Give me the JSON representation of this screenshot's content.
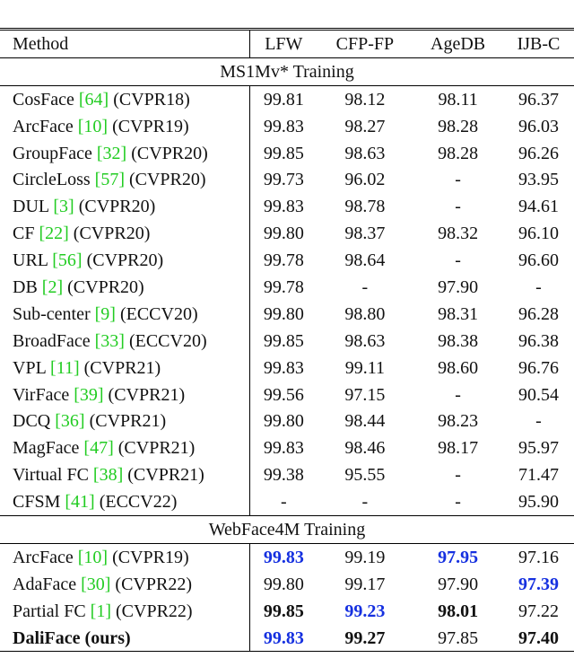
{
  "table": {
    "header": [
      "Method",
      "LFW",
      "CFP-FP",
      "AgeDB",
      "IJB-C"
    ],
    "sections": [
      {
        "title": "MS1Mv* Training",
        "rows": [
          {
            "name": "CosFace",
            "ref": "[64]",
            "venue": "(CVPR18)",
            "values": [
              "99.81",
              "98.12",
              "98.11",
              "96.37"
            ]
          },
          {
            "name": "ArcFace",
            "ref": "[10]",
            "venue": "(CVPR19)",
            "values": [
              "99.83",
              "98.27",
              "98.28",
              "96.03"
            ]
          },
          {
            "name": "GroupFace",
            "ref": "[32]",
            "venue": "(CVPR20)",
            "values": [
              "99.85",
              "98.63",
              "98.28",
              "96.26"
            ]
          },
          {
            "name": "CircleLoss",
            "ref": "[57]",
            "venue": "(CVPR20)",
            "values": [
              "99.73",
              "96.02",
              "-",
              "93.95"
            ]
          },
          {
            "name": "DUL",
            "ref": "[3]",
            "venue": "(CVPR20)",
            "values": [
              "99.83",
              "98.78",
              "-",
              "94.61"
            ]
          },
          {
            "name": "CF",
            "ref": "[22]",
            "venue": "(CVPR20)",
            "values": [
              "99.80",
              "98.37",
              "98.32",
              "96.10"
            ]
          },
          {
            "name": "URL",
            "ref": "[56]",
            "venue": "(CVPR20)",
            "values": [
              "99.78",
              "98.64",
              "-",
              "96.60"
            ]
          },
          {
            "name": "DB",
            "ref": "[2]",
            "venue": "(CVPR20)",
            "values": [
              "99.78",
              "-",
              "97.90",
              "-"
            ]
          },
          {
            "name": "Sub-center",
            "ref": "[9]",
            "venue": "(ECCV20)",
            "values": [
              "99.80",
              "98.80",
              "98.31",
              "96.28"
            ]
          },
          {
            "name": "BroadFace",
            "ref": "[33]",
            "venue": "(ECCV20)",
            "values": [
              "99.85",
              "98.63",
              "98.38",
              "96.38"
            ]
          },
          {
            "name": "VPL",
            "ref": "[11]",
            "venue": "(CVPR21)",
            "values": [
              "99.83",
              "99.11",
              "98.60",
              "96.76"
            ]
          },
          {
            "name": "VirFace",
            "ref": "[39]",
            "venue": "(CVPR21)",
            "values": [
              "99.56",
              "97.15",
              "-",
              "90.54"
            ]
          },
          {
            "name": "DCQ",
            "ref": "[36]",
            "venue": "(CVPR21)",
            "values": [
              "99.80",
              "98.44",
              "98.23",
              "-"
            ]
          },
          {
            "name": "MagFace",
            "ref": "[47]",
            "venue": "(CVPR21)",
            "values": [
              "99.83",
              "98.46",
              "98.17",
              "95.97"
            ]
          },
          {
            "name": "Virtual FC",
            "ref": "[38]",
            "venue": "(CVPR21)",
            "values": [
              "99.38",
              "95.55",
              "-",
              "71.47"
            ]
          },
          {
            "name": "CFSM",
            "ref": "[41]",
            "venue": "(ECCV22)",
            "values": [
              "-",
              "-",
              "-",
              "95.90"
            ]
          }
        ]
      },
      {
        "title": "WebFace4M Training",
        "rows": [
          {
            "name": "ArcFace",
            "ref": "[10]",
            "venue": "(CVPR19)",
            "values": [
              "99.83",
              "99.19",
              "97.95",
              "97.16"
            ]
          },
          {
            "name": "AdaFace",
            "ref": "[30]",
            "venue": "(CVPR22)",
            "values": [
              "99.80",
              "99.17",
              "97.90",
              "97.39"
            ]
          },
          {
            "name": "Partial FC",
            "ref": "[1]",
            "venue": "(CVPR22)",
            "values": [
              "99.85",
              "99.23",
              "98.01",
              "97.22"
            ]
          },
          {
            "name": "DaliFace (ours)",
            "values": [
              "99.83",
              "99.27",
              "97.85",
              "97.40"
            ]
          }
        ]
      }
    ]
  }
}
